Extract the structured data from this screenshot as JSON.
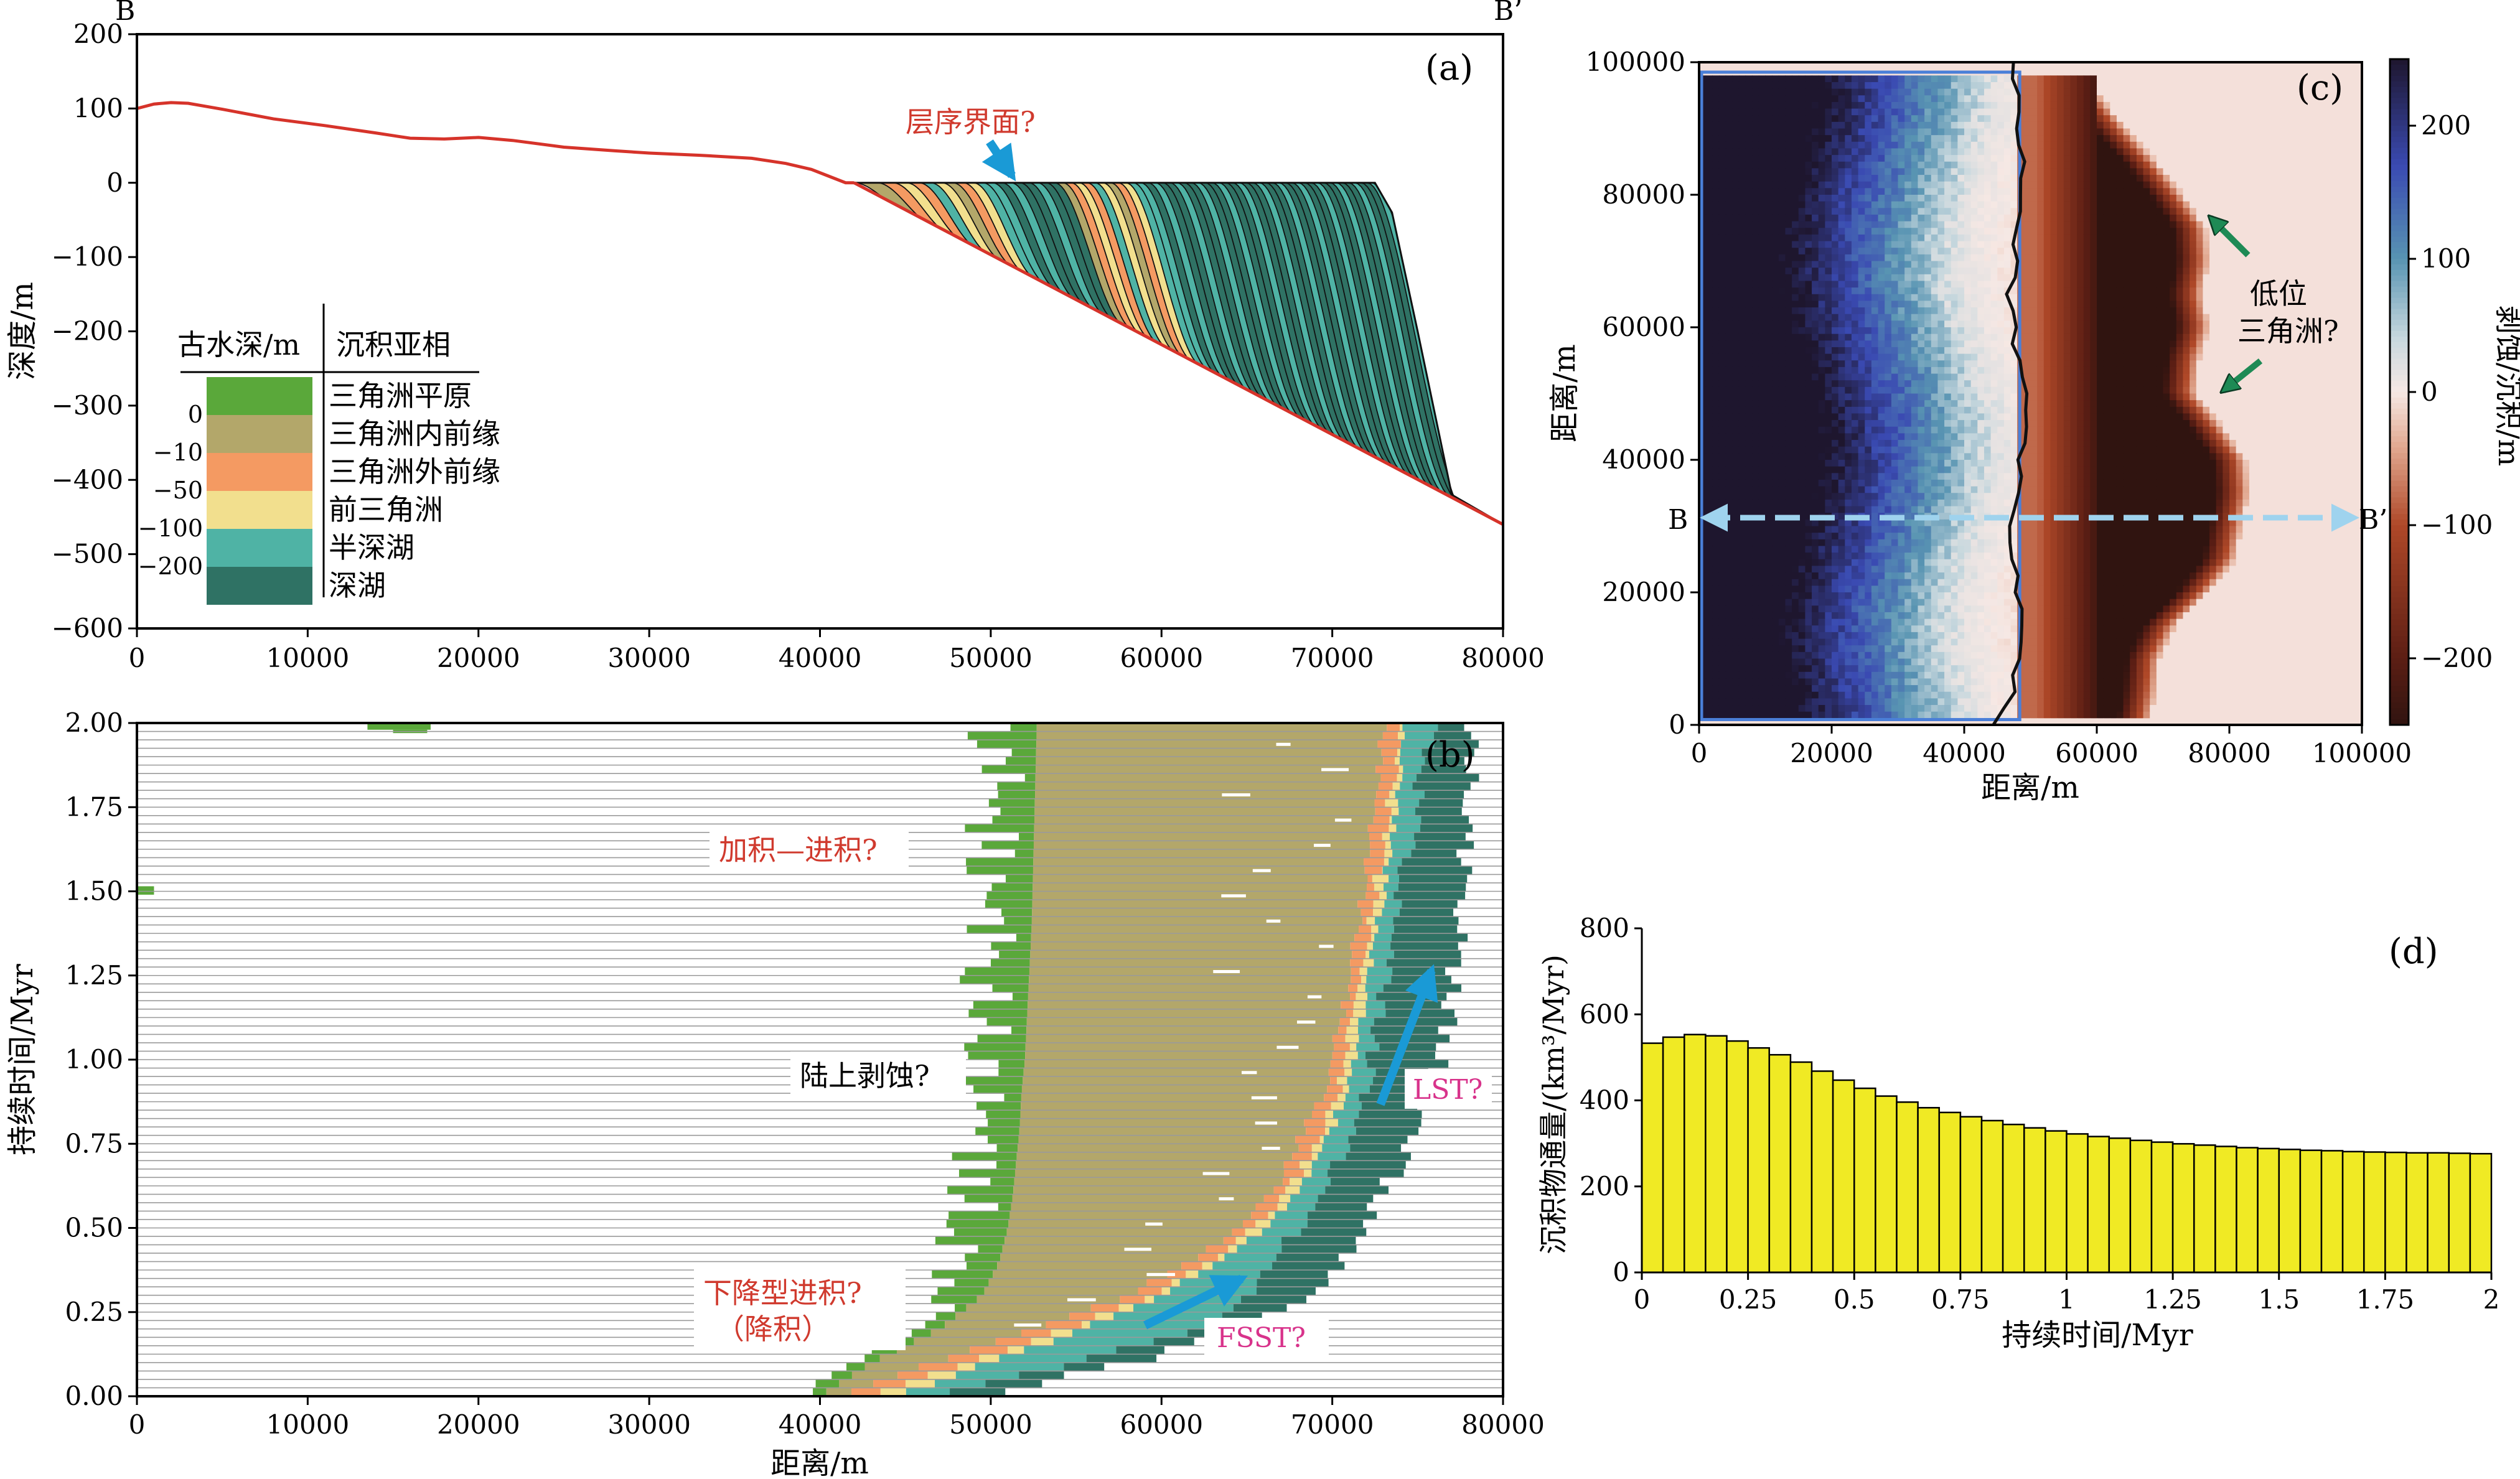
{
  "chart_data": [
    {
      "id": "a",
      "panel_label": "(a)",
      "type": "area",
      "section_labels": [
        "B",
        "B’"
      ],
      "ylabel": "深度/m",
      "xlim": [
        0,
        80000
      ],
      "ylim": [
        -600,
        200
      ],
      "xticks": [
        0,
        10000,
        20000,
        30000,
        40000,
        50000,
        60000,
        70000,
        80000
      ],
      "yticks": [
        -600,
        -500,
        -400,
        -300,
        -200,
        -100,
        0,
        100,
        200
      ],
      "surface": {
        "x": [
          0,
          1000,
          2000,
          3000,
          5000,
          8000,
          11000,
          14000,
          16000,
          18000,
          20000,
          22000,
          25000,
          28000,
          30000,
          33000,
          36000,
          38000,
          39500,
          40500,
          41500,
          42000
        ],
        "y": [
          100,
          106,
          108,
          107,
          99,
          86,
          77,
          67,
          60,
          59,
          61,
          57,
          48,
          43,
          40,
          37,
          33,
          26,
          18,
          9,
          0,
          0
        ]
      },
      "basement": {
        "x": [
          42000,
          80000
        ],
        "y": [
          0,
          -460
        ]
      },
      "clinoform_top": {
        "x": [
          42000,
          72500,
          73500,
          75000,
          77000,
          80000
        ],
        "y": [
          0,
          0,
          -40,
          -200,
          -420,
          -460
        ]
      },
      "annotations": [
        {
          "text": "层序界面?",
          "x": 51000,
          "y": 60
        }
      ],
      "legend": {
        "placement": "lower-left",
        "col1_header": "古水深/m",
        "col2_header": "沉积亚相",
        "depth_labels": [
          "0",
          "−10",
          "−50",
          "−100",
          "−200"
        ],
        "entries": [
          {
            "name": "三角洲平原",
            "color": "#5aa83a"
          },
          {
            "name": "三角洲内前缘",
            "color": "#b3a76a"
          },
          {
            "name": "三角洲外前缘",
            "color": "#f49a62"
          },
          {
            "name": "前三角洲",
            "color": "#f2df8e"
          },
          {
            "name": "半深湖",
            "color": "#4fb3a5"
          },
          {
            "name": "深湖",
            "color": "#2f7264"
          }
        ]
      }
    },
    {
      "id": "b",
      "panel_label": "(b)",
      "type": "area",
      "xlabel": "距离/m",
      "ylabel": "持续时间/Myr",
      "xlim": [
        0,
        80000
      ],
      "ylim": [
        0,
        2
      ],
      "xticks": [
        0,
        10000,
        20000,
        30000,
        40000,
        50000,
        60000,
        70000,
        80000
      ],
      "yticks": [
        "0.00",
        "0.25",
        "0.50",
        "0.75",
        "1.00",
        "1.25",
        "1.50",
        "1.75",
        "2.00"
      ],
      "time_levels": 80,
      "facies_boundaries": {
        "t": [
          0,
          0.1,
          0.2,
          0.3,
          0.4,
          0.5,
          0.6,
          0.7,
          0.8,
          0.9,
          1.0,
          1.2,
          1.4,
          1.6,
          1.8,
          2.0
        ],
        "plain_start": [
          40000,
          43000,
          47000,
          49500,
          50500,
          51000,
          51300,
          51500,
          51700,
          51800,
          52000,
          52200,
          52400,
          52500,
          52600,
          52700
        ],
        "inner_front_end": [
          41500,
          46500,
          52500,
          58000,
          61500,
          64500,
          66500,
          67500,
          68500,
          69500,
          70000,
          70800,
          71500,
          72000,
          72500,
          73000
        ],
        "outer_front_end": [
          43000,
          48500,
          54500,
          59500,
          63000,
          65500,
          67300,
          68500,
          69500,
          70300,
          70800,
          71500,
          72200,
          72800,
          73500,
          74000
        ],
        "prodelta_end": [
          44500,
          50000,
          55500,
          60000,
          63500,
          66000,
          67800,
          69000,
          70000,
          70800,
          71300,
          72000,
          72700,
          73300,
          73900,
          74300
        ],
        "semi_deep_end": [
          47000,
          55000,
          62000,
          65000,
          66500,
          68000,
          69200,
          70300,
          71100,
          71900,
          72300,
          73000,
          73700,
          74400,
          75100,
          75800
        ],
        "deep_end": [
          49000,
          58500,
          64500,
          68500,
          70500,
          71500,
          73000,
          74000,
          75000,
          75800,
          76300,
          76900,
          77400,
          77800,
          78000,
          78200
        ]
      },
      "annotations": [
        {
          "text": "加积—进积?",
          "x": 42000,
          "y": 1.56
        },
        {
          "text": "陆上剥蚀?",
          "x": 41500,
          "y": 0.97
        },
        {
          "text": "下降型进积?",
          "x": 42000,
          "y": 0.29
        },
        {
          "text": "（降积）",
          "x": 42000,
          "y": 0.19
        },
        {
          "text": "LST?",
          "x": 77400,
          "y": 0.92
        },
        {
          "text": "FSST?",
          "x": 68800,
          "y": 0.17
        }
      ]
    },
    {
      "id": "c",
      "panel_label": "(c)",
      "type": "heatmap",
      "xlabel": "距离/m",
      "ylabel": "距离/m",
      "colorbar_label": "剥蚀/沉积/m",
      "xlim": [
        0,
        100000
      ],
      "ylim": [
        0,
        100000
      ],
      "xticks": [
        0,
        20000,
        40000,
        60000,
        80000,
        100000
      ],
      "yticks": [
        0,
        20000,
        40000,
        60000,
        80000,
        100000
      ],
      "clim": [
        -250,
        250
      ],
      "colorbar_ticks": [
        -200,
        -100,
        0,
        100,
        200
      ],
      "section_line": {
        "start_label": "B",
        "end_label": "B’",
        "y": 30000
      },
      "annotations": [
        {
          "text": "低位",
          "x": 86000,
          "y": 64000
        },
        {
          "text": "三角洲?",
          "x": 86000,
          "y": 58000
        }
      ],
      "shoreline_x": 48000,
      "lowstand_delta_front": {
        "y": [
          0,
          5000,
          10000,
          15000,
          20000,
          25000,
          30000,
          35000,
          40000,
          45000,
          50000,
          55000,
          60000,
          65000,
          70000,
          75000,
          80000,
          85000,
          90000,
          95000,
          97000
        ],
        "x": [
          66000,
          67000,
          67500,
          70000,
          75000,
          79000,
          80000,
          81000,
          80500,
          77000,
          73000,
          73500,
          75000,
          74000,
          75000,
          74500,
          71000,
          67000,
          62500,
          58500,
          56500
        ]
      }
    },
    {
      "id": "d",
      "panel_label": "(d)",
      "type": "bar",
      "xlabel": "持续时间/Myr",
      "ylabel": "沉积物通量/(km³/Myr)",
      "xlim": [
        0,
        2
      ],
      "ylim": [
        0,
        800
      ],
      "xticks": [
        "0",
        "0.25",
        "0.5",
        "0.75",
        "1",
        "1.25",
        "1.5",
        "1.75",
        "2"
      ],
      "yticks": [
        0,
        200,
        400,
        600,
        800
      ],
      "bar_width": 0.05,
      "x": [
        0.025,
        0.075,
        0.125,
        0.175,
        0.225,
        0.275,
        0.325,
        0.375,
        0.425,
        0.475,
        0.525,
        0.575,
        0.625,
        0.675,
        0.725,
        0.775,
        0.825,
        0.875,
        0.925,
        0.975,
        1.025,
        1.075,
        1.125,
        1.175,
        1.225,
        1.275,
        1.325,
        1.375,
        1.425,
        1.475,
        1.525,
        1.575,
        1.625,
        1.675,
        1.725,
        1.775,
        1.825,
        1.875,
        1.925,
        1.975
      ],
      "values": [
        533,
        547,
        553,
        550,
        538,
        522,
        506,
        489,
        468,
        447,
        428,
        410,
        396,
        383,
        372,
        362,
        353,
        344,
        336,
        329,
        322,
        316,
        312,
        307,
        303,
        299,
        296,
        293,
        290,
        288,
        286,
        284,
        283,
        281,
        280,
        279,
        278,
        278,
        277,
        276
      ]
    }
  ]
}
